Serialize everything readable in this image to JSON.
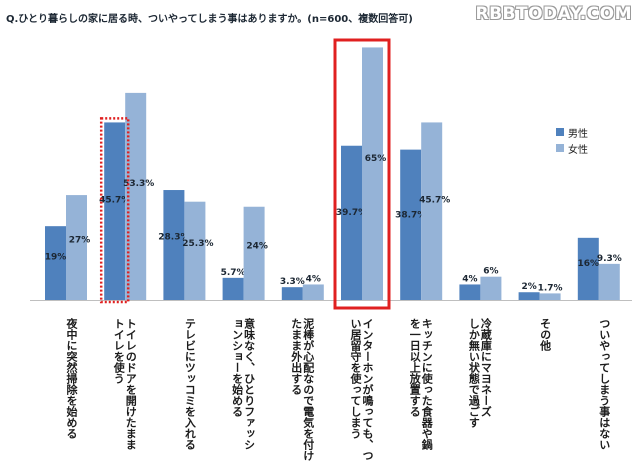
{
  "title": "Q.ひとり暮らしの家に居る時、ついやってしまう事はありますか。(n=600、複数回答可)",
  "watermark": "RBBTODAY.COM",
  "chart_data": {
    "type": "bar",
    "categories": [
      "夜中に突然掃除を始める",
      "トイレのドアを開けたまま\nトイレを使う",
      "テレビにツッコミを入れる",
      "意味なく、ひとりファッシ\nョンショーを始める",
      "泥棒が心配なので電気を付け\nたまま外出する",
      "インターホンが鳴っても、つ\nい居留守を使ってしまう",
      "キッチンに使った食器や鍋\nを一日以上放置する",
      "冷蔵庫にマヨネーズ\nしか無い状態で過ごす",
      "その他",
      "ついやってしまう事はない"
    ],
    "series": [
      {
        "name": "男性",
        "color": "#4f81bd",
        "values": [
          19,
          45.7,
          28.3,
          5.7,
          3.3,
          39.7,
          38.7,
          4,
          2,
          16
        ],
        "labels": [
          "19%",
          "45.7%",
          "28.3%",
          "5.7%",
          "3.3%",
          "39.7%",
          "38.7%",
          "4%",
          "2%",
          "16%"
        ]
      },
      {
        "name": "女性",
        "color": "#95b3d7",
        "values": [
          27,
          53.3,
          25.3,
          24,
          4,
          65,
          45.7,
          6,
          1.7,
          9.3
        ],
        "labels": [
          "27%",
          "53.3%",
          "25.3%",
          "24%",
          "4%",
          "65%",
          "45.7%",
          "6%",
          "1.7%",
          "9.3%"
        ]
      }
    ],
    "ylim": [
      0,
      70
    ],
    "highlight": {
      "dotted_red_box": "トイレのドアを開けたまま トイレを使う (男性)",
      "solid_red_box": "インターホンが鳴っても、つい居留守を使ってしまう"
    },
    "legend_position": "right"
  }
}
